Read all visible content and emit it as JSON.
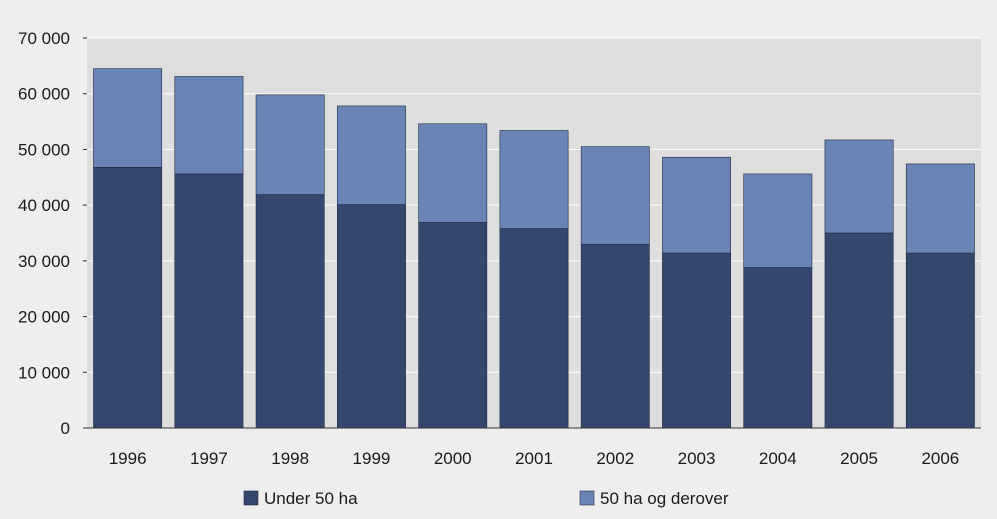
{
  "chart_data": {
    "type": "bar",
    "stacked": true,
    "categories": [
      "1996",
      "1997",
      "1998",
      "1999",
      "2000",
      "2001",
      "2002",
      "2003",
      "2004",
      "2005",
      "2006"
    ],
    "series": [
      {
        "name": "Under 50 ha",
        "color": "#35476c",
        "values": [
          46800,
          45600,
          41900,
          40100,
          36900,
          35800,
          33000,
          31400,
          28800,
          35000,
          31400
        ]
      },
      {
        "name": "50 ha og derover",
        "color": "#6b84b6",
        "values": [
          17700,
          17500,
          17900,
          17700,
          17700,
          17600,
          17500,
          17200,
          16800,
          16700,
          16000
        ]
      }
    ],
    "ylim": [
      0,
      70000
    ],
    "yticks": [
      "0",
      "10 000",
      "20 000",
      "30 000",
      "40 000",
      "50 000",
      "60 000",
      "70 000"
    ],
    "grid": true,
    "legend": "bottom",
    "colors": {
      "page_background": "#eeeeee",
      "plot_background": "#dedede",
      "gridline": "#ffffff",
      "axis": "#333333"
    }
  }
}
